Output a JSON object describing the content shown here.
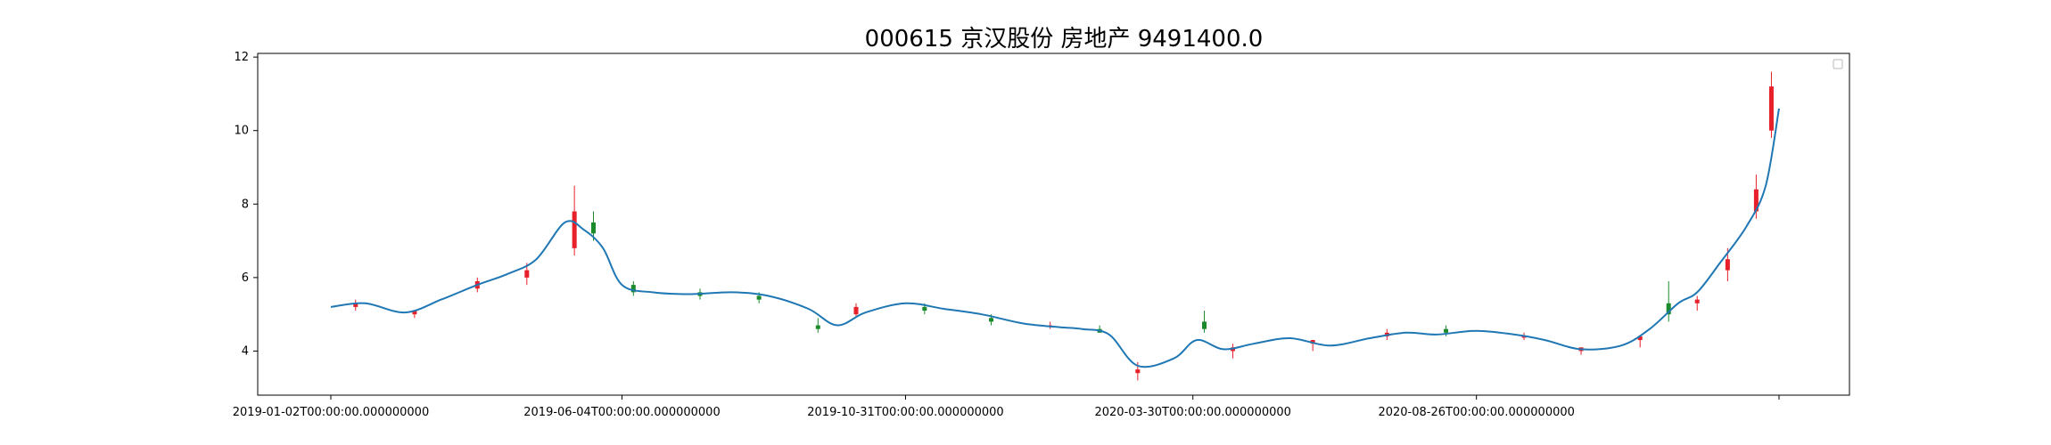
{
  "chart_data": {
    "type": "line",
    "title": "000615 京汉股份 房地产 9491400.0",
    "xlabel": "",
    "ylabel": "",
    "ylim": [
      2.8,
      12.1
    ],
    "grid": false,
    "legend": "top-right (empty)",
    "x_tick_labels": [
      "2019-01-02T00:00:00.000000000",
      "2019-06-04T00:00:00.000000000",
      "2019-10-31T00:00:00.000000000",
      "2020-03-30T00:00:00.000000000",
      "2020-08-26T00:00:00.000000000"
    ],
    "y_ticks": [
      4,
      6,
      8,
      10,
      12
    ],
    "series": [
      {
        "style": "smoothed-line",
        "color": "#1f77b4",
        "x": [
          "2019-01-02",
          "2019-01-20",
          "2019-02-10",
          "2019-03-01",
          "2019-03-20",
          "2019-04-05",
          "2019-04-20",
          "2019-05-05",
          "2019-05-15",
          "2019-05-25",
          "2019-06-04",
          "2019-06-20",
          "2019-07-10",
          "2019-08-01",
          "2019-08-20",
          "2019-09-10",
          "2019-09-25",
          "2019-10-10",
          "2019-10-31",
          "2019-11-20",
          "2019-12-10",
          "2020-01-01",
          "2020-01-20",
          "2020-02-01",
          "2020-02-15",
          "2020-03-01",
          "2020-03-20",
          "2020-04-01",
          "2020-04-15",
          "2020-05-01",
          "2020-05-20",
          "2020-06-10",
          "2020-07-01",
          "2020-07-20",
          "2020-08-05",
          "2020-08-26",
          "2020-09-15",
          "2020-10-01",
          "2020-10-20",
          "2020-11-10",
          "2020-11-25",
          "2020-12-10",
          "2020-12-20",
          "2021-01-01",
          "2021-01-15",
          "2021-01-25",
          "2021-02-01"
        ],
        "y": [
          5.2,
          5.3,
          5.05,
          5.4,
          5.8,
          6.1,
          6.5,
          7.5,
          7.3,
          6.8,
          5.8,
          5.6,
          5.55,
          5.6,
          5.5,
          5.15,
          4.7,
          5.05,
          5.3,
          5.15,
          5.0,
          4.75,
          4.65,
          4.6,
          4.45,
          3.6,
          3.8,
          4.3,
          4.05,
          4.2,
          4.35,
          4.15,
          4.35,
          4.5,
          4.45,
          4.55,
          4.45,
          4.3,
          4.05,
          4.15,
          4.6,
          5.3,
          5.6,
          6.4,
          7.4,
          8.5,
          10.6
        ]
      },
      {
        "style": "candlestick",
        "name": "",
        "dates": [
          "2019-01-15",
          "2019-02-15",
          "2019-03-20",
          "2019-04-15",
          "2019-05-10",
          "2019-05-20",
          "2019-06-10",
          "2019-07-15",
          "2019-08-15",
          "2019-09-15",
          "2019-10-05",
          "2019-11-10",
          "2019-12-15",
          "2020-01-15",
          "2020-02-10",
          "2020-03-01",
          "2020-04-05",
          "2020-04-20",
          "2020-06-01",
          "2020-07-10",
          "2020-08-10",
          "2020-09-20",
          "2020-10-20",
          "2020-11-20",
          "2020-12-05",
          "2020-12-20",
          "2021-01-05",
          "2021-01-20",
          "2021-01-28"
        ],
        "open": [
          5.2,
          5.0,
          5.7,
          6.0,
          6.8,
          7.5,
          5.8,
          5.6,
          5.5,
          4.7,
          5.0,
          5.2,
          4.9,
          4.7,
          4.6,
          3.4,
          4.8,
          4.0,
          4.2,
          4.4,
          4.6,
          4.4,
          4.0,
          4.3,
          5.3,
          5.3,
          6.2,
          7.8,
          10.0
        ],
        "high": [
          5.4,
          5.1,
          6.0,
          6.4,
          8.5,
          7.8,
          5.9,
          5.7,
          5.6,
          4.9,
          5.3,
          5.3,
          5.0,
          4.8,
          4.7,
          3.7,
          5.1,
          4.2,
          4.3,
          4.6,
          4.7,
          4.5,
          4.1,
          4.4,
          5.9,
          5.5,
          6.8,
          8.8,
          11.6
        ],
        "low": [
          5.1,
          4.9,
          5.6,
          5.8,
          6.6,
          7.0,
          5.5,
          5.4,
          5.3,
          4.5,
          4.9,
          5.0,
          4.7,
          4.6,
          4.5,
          3.2,
          4.5,
          3.8,
          4.0,
          4.3,
          4.4,
          4.3,
          3.9,
          4.1,
          4.8,
          5.1,
          5.9,
          7.6,
          9.8
        ],
        "close": [
          5.3,
          5.1,
          5.9,
          6.2,
          7.8,
          7.2,
          5.6,
          5.5,
          5.4,
          4.6,
          5.2,
          5.1,
          4.8,
          4.7,
          4.5,
          3.5,
          4.6,
          4.1,
          4.3,
          4.5,
          4.5,
          4.4,
          4.1,
          4.4,
          5.0,
          5.4,
          6.5,
          8.4,
          11.2
        ]
      }
    ]
  },
  "colors": {
    "line": "#1f77b4",
    "candle_up": "#e8202a",
    "candle_down": "#1a8a2a",
    "axis": "#000000"
  }
}
